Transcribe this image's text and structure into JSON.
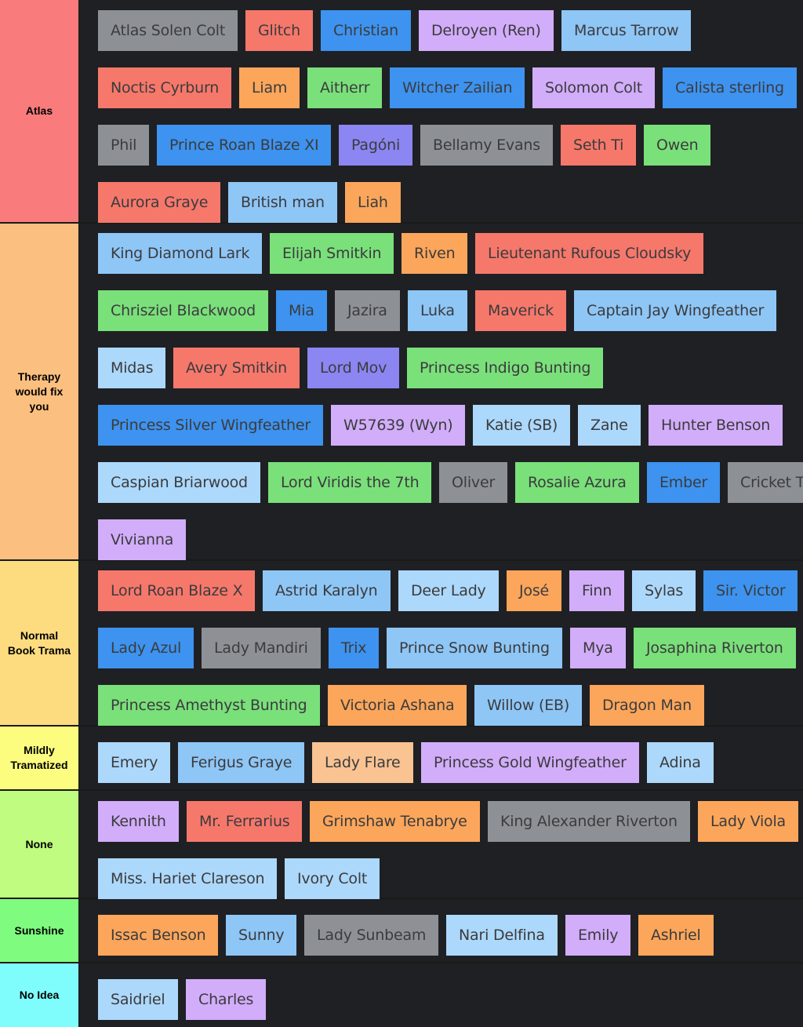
{
  "colors": {
    "gray": "#8d9196",
    "red": "#f6786b",
    "blue": "#3d93ef",
    "purple": "#d2adfa",
    "lightblue": "#8ec6f6",
    "orange": "#fba65b",
    "green": "#7ae07a",
    "violet": "#8b86f2",
    "paleblue": "#acd8fb",
    "peach": "#f9c392"
  },
  "tiers": [
    {
      "label": "Atlas",
      "color": "#f97b7b",
      "items": [
        {
          "text": "Atlas Solen Colt",
          "color": "gray"
        },
        {
          "text": "Glitch",
          "color": "red"
        },
        {
          "text": "Christian",
          "color": "blue"
        },
        {
          "text": "Delroyen (Ren)",
          "color": "purple"
        },
        {
          "text": "Marcus Tarrow",
          "color": "lightblue"
        },
        {
          "text": "Noctis Cyrburn",
          "color": "red"
        },
        {
          "text": "Liam",
          "color": "orange"
        },
        {
          "text": "Aitherr",
          "color": "green"
        },
        {
          "text": "Witcher Zailian",
          "color": "blue"
        },
        {
          "text": "Solomon Colt",
          "color": "purple"
        },
        {
          "text": "Calista sterling",
          "color": "blue"
        },
        {
          "text": "Phil",
          "color": "gray"
        },
        {
          "text": "Prince Roan Blaze XI",
          "color": "blue"
        },
        {
          "text": "Pagóni",
          "color": "violet"
        },
        {
          "text": "Bellamy Evans",
          "color": "gray"
        },
        {
          "text": "Seth Ti",
          "color": "red"
        },
        {
          "text": "Owen",
          "color": "green"
        },
        {
          "text": "Aurora Graye",
          "color": "red"
        },
        {
          "text": "British man",
          "color": "lightblue"
        },
        {
          "text": "Liah",
          "color": "orange"
        }
      ]
    },
    {
      "label": "Therapy\nwould fix\nyou",
      "color": "#fbbf7f",
      "items": [
        {
          "text": "King Diamond Lark",
          "color": "lightblue"
        },
        {
          "text": "Elijah Smitkin",
          "color": "green"
        },
        {
          "text": "Riven",
          "color": "orange"
        },
        {
          "text": "Lieutenant Rufous Cloudsky",
          "color": "red"
        },
        {
          "text": "Chrisziel Blackwood",
          "color": "green"
        },
        {
          "text": "Mia",
          "color": "blue"
        },
        {
          "text": "Jazira",
          "color": "gray"
        },
        {
          "text": "Luka",
          "color": "lightblue"
        },
        {
          "text": "Maverick",
          "color": "red"
        },
        {
          "text": "Captain Jay Wingfeather",
          "color": "lightblue"
        },
        {
          "text": "Midas",
          "color": "paleblue"
        },
        {
          "text": "Avery Smitkin",
          "color": "red"
        },
        {
          "text": "Lord Mov",
          "color": "violet"
        },
        {
          "text": "Princess Indigo Bunting",
          "color": "green"
        },
        {
          "text": "Princess Silver Wingfeather",
          "color": "blue"
        },
        {
          "text": "W57639 (Wyn)",
          "color": "purple"
        },
        {
          "text": "Katie (SB)",
          "color": "paleblue"
        },
        {
          "text": "Zane",
          "color": "paleblue"
        },
        {
          "text": "Hunter Benson",
          "color": "purple"
        },
        {
          "text": "Caspian Briarwood",
          "color": "paleblue"
        },
        {
          "text": "Lord Viridis the 7th",
          "color": "green"
        },
        {
          "text": "Oliver",
          "color": "gray"
        },
        {
          "text": "Rosalie Azura",
          "color": "green"
        },
        {
          "text": "Ember",
          "color": "blue"
        },
        {
          "text": "Cricket Ti",
          "color": "gray"
        },
        {
          "text": "Vivianna",
          "color": "purple"
        }
      ]
    },
    {
      "label": "Normal\nBook Trama",
      "color": "#fcdc7f",
      "items": [
        {
          "text": "Lord Roan Blaze X",
          "color": "red"
        },
        {
          "text": "Astrid Karalyn",
          "color": "lightblue"
        },
        {
          "text": "Deer Lady",
          "color": "paleblue"
        },
        {
          "text": "José",
          "color": "orange"
        },
        {
          "text": "Finn",
          "color": "purple"
        },
        {
          "text": "Sylas",
          "color": "paleblue"
        },
        {
          "text": "Sir. Victor",
          "color": "blue"
        },
        {
          "text": "Lady Azul",
          "color": "blue"
        },
        {
          "text": "Lady Mandiri",
          "color": "gray"
        },
        {
          "text": "Trix",
          "color": "blue"
        },
        {
          "text": "Prince Snow Bunting",
          "color": "lightblue"
        },
        {
          "text": "Mya",
          "color": "purple"
        },
        {
          "text": "Josaphina Riverton",
          "color": "green"
        },
        {
          "text": "Princess Amethyst Bunting",
          "color": "green"
        },
        {
          "text": "Victoria Ashana",
          "color": "orange"
        },
        {
          "text": "Willow (EB)",
          "color": "lightblue"
        },
        {
          "text": "Dragon Man",
          "color": "orange"
        }
      ]
    },
    {
      "label": "Mildly\nTramatized",
      "color": "#fcfc7f",
      "items": [
        {
          "text": "Emery",
          "color": "paleblue"
        },
        {
          "text": "Ferigus Graye",
          "color": "lightblue"
        },
        {
          "text": "Lady Flare",
          "color": "peach"
        },
        {
          "text": "Princess Gold Wingfeather",
          "color": "purple"
        },
        {
          "text": "Adina",
          "color": "paleblue"
        }
      ]
    },
    {
      "label": "None",
      "color": "#bffc7f",
      "items": [
        {
          "text": "Kennith",
          "color": "purple"
        },
        {
          "text": "Mr. Ferrarius",
          "color": "red"
        },
        {
          "text": "Grimshaw Tenabrye",
          "color": "orange"
        },
        {
          "text": "King Alexander Riverton",
          "color": "gray"
        },
        {
          "text": "Lady Viola",
          "color": "orange"
        },
        {
          "text": "Miss. Hariet Clareson",
          "color": "paleblue"
        },
        {
          "text": "Ivory Colt",
          "color": "paleblue"
        }
      ]
    },
    {
      "label": "Sunshine",
      "color": "#7ffc7f",
      "items": [
        {
          "text": "Issac Benson",
          "color": "orange"
        },
        {
          "text": "Sunny",
          "color": "lightblue"
        },
        {
          "text": "Lady Sunbeam",
          "color": "gray"
        },
        {
          "text": "Nari Delfina",
          "color": "paleblue"
        },
        {
          "text": "Emily",
          "color": "purple"
        },
        {
          "text": "Ashriel",
          "color": "orange"
        }
      ]
    },
    {
      "label": "No Idea",
      "color": "#7ffcfc",
      "items": [
        {
          "text": "Saidriel",
          "color": "paleblue"
        },
        {
          "text": "Charles",
          "color": "purple"
        }
      ]
    }
  ]
}
